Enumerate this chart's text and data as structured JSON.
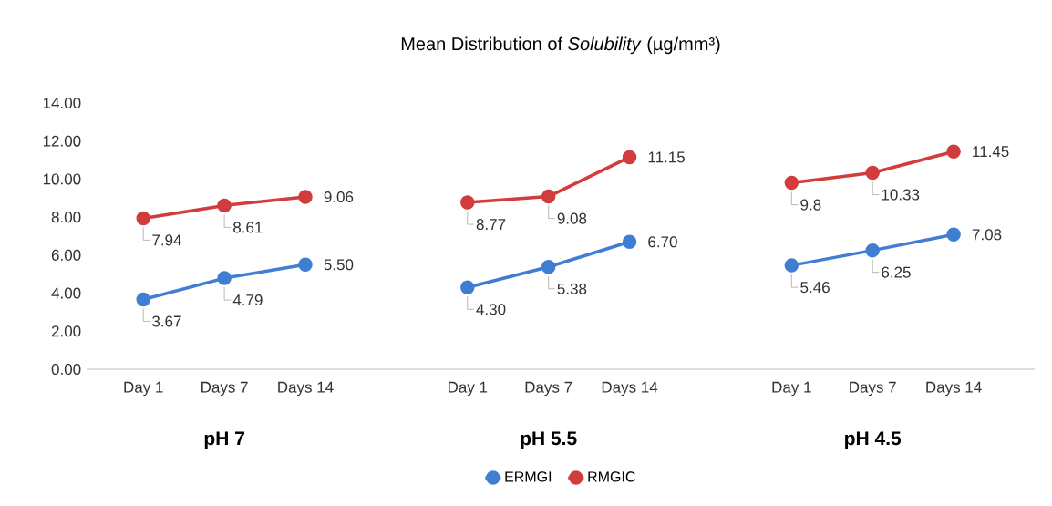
{
  "chart_data": {
    "type": "line",
    "title": "Mean Distribution of *Solubility* (µg/mm³)",
    "categories": [
      "Day 1",
      "Days 7",
      "Days 14",
      null,
      "Day 1",
      "Days 7",
      "Days 14",
      null,
      "Day 1",
      "Days 7",
      "Days 14"
    ],
    "series": [
      {
        "name": "ERMGI",
        "color": "#3f7ed2",
        "values": [
          3.67,
          4.79,
          5.5,
          null,
          4.3,
          5.38,
          6.7,
          null,
          5.46,
          6.25,
          7.08
        ],
        "value_labels": [
          "3.67",
          "4.79",
          "5.50",
          null,
          "4.30",
          "5.38",
          "6.70",
          null,
          "5.46",
          "6.25",
          "7.08"
        ]
      },
      {
        "name": "RMGIC",
        "color": "#d13c3c",
        "values": [
          7.94,
          8.61,
          9.06,
          null,
          8.77,
          9.08,
          11.15,
          null,
          9.8,
          10.33,
          11.45
        ],
        "value_labels": [
          "7.94",
          "8.61",
          "9.06",
          null,
          "8.77",
          "9.08",
          "11.15",
          null,
          "9.8",
          "10.33",
          "11.45"
        ]
      }
    ],
    "annotations": [
      "pH 7",
      "pH 5.5",
      "pH 4.5"
    ],
    "ylim": [
      0,
      14
    ],
    "yticks": [
      {
        "value": 0,
        "label": "0.00"
      },
      {
        "value": 2,
        "label": "2.00"
      },
      {
        "value": 4,
        "label": "4.00"
      },
      {
        "value": 6,
        "label": "6.00"
      },
      {
        "value": 8,
        "label": "8.00"
      },
      {
        "value": 10,
        "label": "10.00"
      },
      {
        "value": 12,
        "label": "12.00"
      },
      {
        "value": 14,
        "label": "14.00"
      }
    ],
    "marker": "circle",
    "line_style": "solid",
    "legend": "bottom",
    "grid": false
  }
}
